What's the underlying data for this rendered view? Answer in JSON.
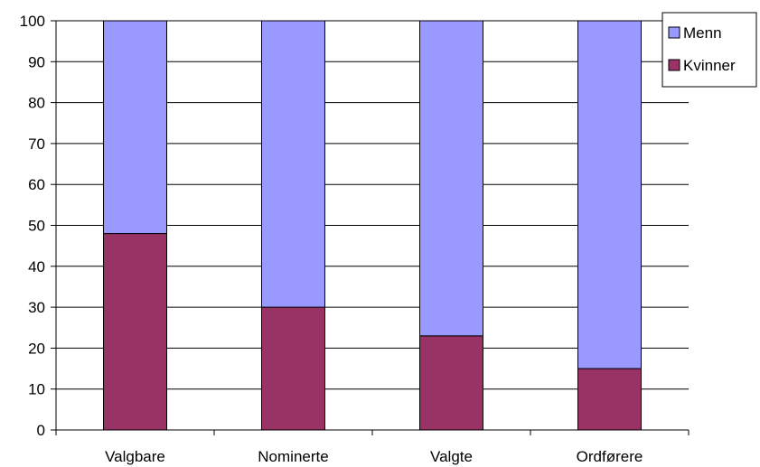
{
  "chart_data": {
    "type": "bar",
    "stacked": true,
    "percent_stacked": true,
    "title": "",
    "xlabel": "",
    "ylabel": "",
    "ylim": [
      0,
      100
    ],
    "y_ticks": [
      0,
      10,
      20,
      30,
      40,
      50,
      60,
      70,
      80,
      90,
      100
    ],
    "grid": true,
    "legend_position": "top-right",
    "categories": [
      "Valgbare",
      "Nominerte",
      "Valgte",
      "Ordførere"
    ],
    "series": [
      {
        "name": "Kvinner",
        "color": "#993366",
        "values": [
          48,
          30,
          23,
          15
        ]
      },
      {
        "name": "Menn",
        "color": "#9999ff",
        "values": [
          52,
          70,
          77,
          85
        ]
      }
    ]
  }
}
